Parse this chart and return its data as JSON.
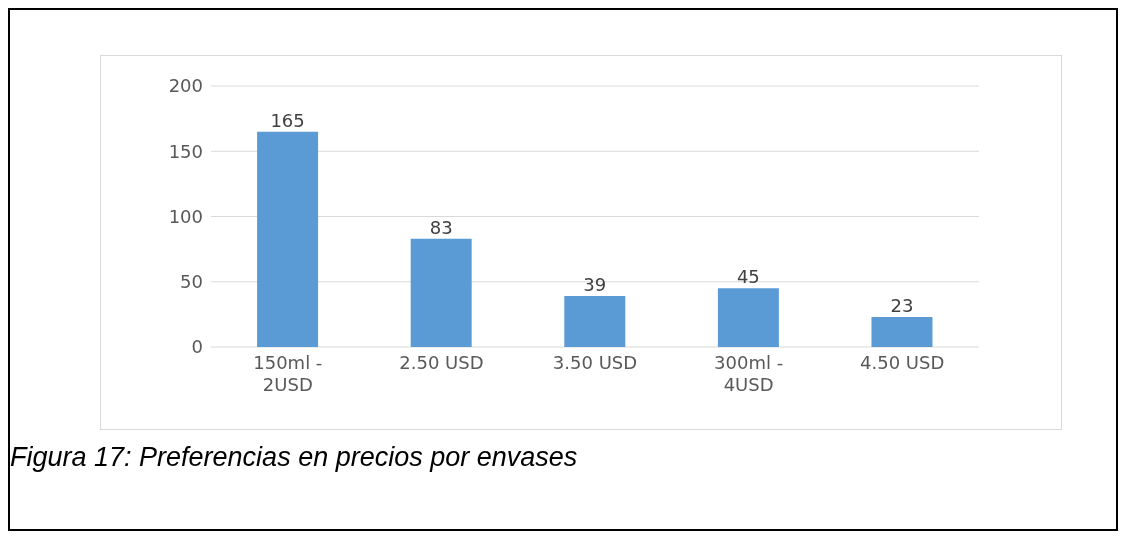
{
  "chart_data": {
    "type": "bar",
    "categories": [
      "150ml - 2USD",
      "2.50 USD",
      "3.50 USD",
      "300ml - 4USD",
      "4.50 USD"
    ],
    "values": [
      165,
      83,
      39,
      45,
      23
    ],
    "color": "#5b9bd5",
    "ylim": [
      0,
      200
    ],
    "yticks": [
      0,
      50,
      100,
      150,
      200
    ],
    "grid": "y",
    "data_labels": true,
    "annotations": [
      "Figura 17: Preferencias en precios por envases"
    ]
  }
}
